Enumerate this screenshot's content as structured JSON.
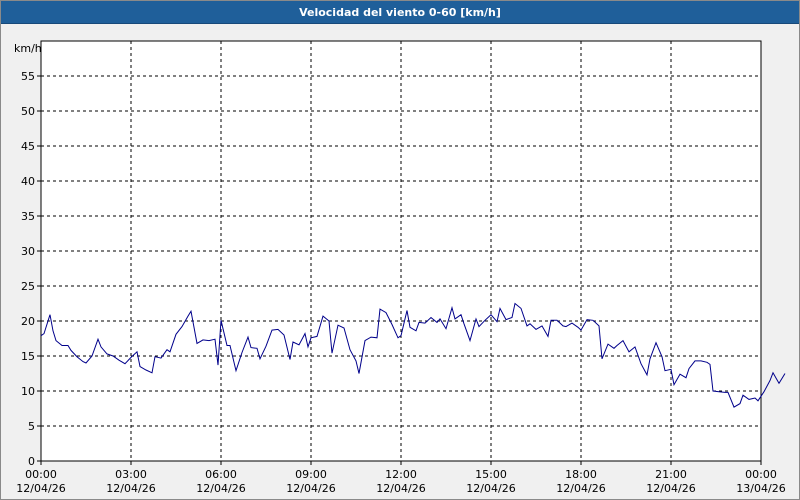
{
  "window": {
    "title": "Velocidad del viento 0-60 [km/h]"
  },
  "colors": {
    "series": "#00008b",
    "grid": "#000000",
    "plot_bg": "#ffffff",
    "title_bar": "#1f5f9a"
  },
  "chart_data": {
    "type": "line",
    "title": "Velocidad del viento 0-60 [km/h]",
    "ylabel": "km/h",
    "ylim": [
      0,
      60
    ],
    "yticks": [
      0,
      5,
      10,
      15,
      20,
      25,
      30,
      35,
      40,
      45,
      50,
      55
    ],
    "xlim_hours": [
      0,
      24
    ],
    "grid": true,
    "xticks": [
      {
        "hour": 0,
        "time": "00:00",
        "date": "12/04/26"
      },
      {
        "hour": 3,
        "time": "03:00",
        "date": "12/04/26"
      },
      {
        "hour": 6,
        "time": "06:00",
        "date": "12/04/26"
      },
      {
        "hour": 9,
        "time": "09:00",
        "date": "12/04/26"
      },
      {
        "hour": 12,
        "time": "12:00",
        "date": "12/04/26"
      },
      {
        "hour": 15,
        "time": "15:00",
        "date": "12/04/26"
      },
      {
        "hour": 18,
        "time": "18:00",
        "date": "12/04/26"
      },
      {
        "hour": 21,
        "time": "21:00",
        "date": "12/04/26"
      },
      {
        "hour": 24,
        "time": "00:00",
        "date": "13/04/26"
      }
    ],
    "series": [
      {
        "values": [
          [
            0.0,
            17.9
          ],
          [
            0.1,
            18.2
          ],
          [
            0.3,
            20.9
          ],
          [
            0.4,
            18.6
          ],
          [
            0.5,
            17.2
          ],
          [
            0.7,
            16.5
          ],
          [
            0.9,
            16.5
          ],
          [
            1.0,
            15.8
          ],
          [
            1.2,
            14.9
          ],
          [
            1.4,
            14.2
          ],
          [
            1.5,
            14.0
          ],
          [
            1.7,
            15.0
          ],
          [
            1.9,
            17.4
          ],
          [
            2.0,
            16.3
          ],
          [
            2.2,
            15.3
          ],
          [
            2.4,
            15.0
          ],
          [
            2.6,
            14.4
          ],
          [
            2.8,
            13.9
          ],
          [
            3.0,
            14.8
          ],
          [
            3.2,
            15.6
          ],
          [
            3.3,
            13.5
          ],
          [
            3.5,
            13.0
          ],
          [
            3.7,
            12.6
          ],
          [
            3.8,
            14.9
          ],
          [
            4.0,
            14.7
          ],
          [
            4.2,
            15.9
          ],
          [
            4.3,
            15.6
          ],
          [
            4.5,
            18.1
          ],
          [
            4.7,
            19.2
          ],
          [
            4.9,
            20.7
          ],
          [
            5.0,
            21.4
          ],
          [
            5.2,
            16.8
          ],
          [
            5.4,
            17.3
          ],
          [
            5.6,
            17.2
          ],
          [
            5.8,
            17.4
          ],
          [
            5.9,
            13.7
          ],
          [
            6.0,
            20.1
          ],
          [
            6.2,
            16.5
          ],
          [
            6.3,
            16.5
          ],
          [
            6.5,
            12.9
          ],
          [
            6.7,
            15.5
          ],
          [
            6.9,
            17.7
          ],
          [
            7.0,
            16.2
          ],
          [
            7.2,
            16.1
          ],
          [
            7.3,
            14.6
          ],
          [
            7.5,
            16.4
          ],
          [
            7.7,
            18.7
          ],
          [
            7.9,
            18.8
          ],
          [
            8.1,
            18.0
          ],
          [
            8.3,
            14.5
          ],
          [
            8.4,
            17.0
          ],
          [
            8.6,
            16.6
          ],
          [
            8.8,
            18.2
          ],
          [
            8.9,
            16.3
          ],
          [
            9.0,
            17.6
          ],
          [
            9.2,
            17.8
          ],
          [
            9.4,
            20.7
          ],
          [
            9.6,
            20.0
          ],
          [
            9.7,
            15.4
          ],
          [
            9.9,
            19.4
          ],
          [
            10.1,
            19.0
          ],
          [
            10.3,
            15.9
          ],
          [
            10.5,
            14.3
          ],
          [
            10.6,
            12.5
          ],
          [
            10.8,
            17.2
          ],
          [
            11.0,
            17.7
          ],
          [
            11.2,
            17.6
          ],
          [
            11.3,
            21.7
          ],
          [
            11.5,
            21.2
          ],
          [
            11.7,
            19.5
          ],
          [
            11.9,
            17.6
          ],
          [
            12.0,
            17.9
          ],
          [
            12.2,
            21.5
          ],
          [
            12.3,
            19.1
          ],
          [
            12.5,
            18.6
          ],
          [
            12.6,
            19.8
          ],
          [
            12.8,
            19.7
          ],
          [
            13.0,
            20.5
          ],
          [
            13.2,
            19.8
          ],
          [
            13.3,
            20.3
          ],
          [
            13.5,
            18.9
          ],
          [
            13.7,
            21.9
          ],
          [
            13.8,
            20.3
          ],
          [
            14.0,
            20.9
          ],
          [
            14.1,
            19.6
          ],
          [
            14.3,
            17.2
          ],
          [
            14.5,
            20.3
          ],
          [
            14.6,
            19.2
          ],
          [
            14.8,
            20.1
          ],
          [
            15.0,
            20.9
          ],
          [
            15.2,
            19.9
          ],
          [
            15.3,
            21.8
          ],
          [
            15.5,
            20.2
          ],
          [
            15.7,
            20.5
          ],
          [
            15.8,
            22.5
          ],
          [
            16.0,
            21.8
          ],
          [
            16.2,
            19.3
          ],
          [
            16.3,
            19.6
          ],
          [
            16.5,
            18.8
          ],
          [
            16.7,
            19.3
          ],
          [
            16.9,
            17.8
          ],
          [
            17.0,
            20.1
          ],
          [
            17.2,
            20.1
          ],
          [
            17.4,
            19.3
          ],
          [
            17.5,
            19.2
          ],
          [
            17.7,
            19.7
          ],
          [
            17.9,
            19.1
          ],
          [
            18.0,
            18.7
          ],
          [
            18.2,
            20.2
          ],
          [
            18.4,
            20.1
          ],
          [
            18.6,
            19.3
          ],
          [
            18.7,
            14.6
          ],
          [
            18.9,
            16.7
          ],
          [
            19.1,
            16.1
          ],
          [
            19.2,
            16.5
          ],
          [
            19.4,
            17.2
          ],
          [
            19.6,
            15.6
          ],
          [
            19.8,
            16.3
          ],
          [
            20.0,
            13.9
          ],
          [
            20.2,
            12.3
          ],
          [
            20.3,
            14.6
          ],
          [
            20.5,
            16.9
          ],
          [
            20.7,
            14.9
          ],
          [
            20.8,
            12.9
          ],
          [
            21.0,
            13.1
          ],
          [
            21.1,
            10.9
          ],
          [
            21.3,
            12.4
          ],
          [
            21.5,
            11.9
          ],
          [
            21.6,
            13.2
          ],
          [
            21.8,
            14.3
          ],
          [
            22.0,
            14.3
          ],
          [
            22.2,
            14.1
          ],
          [
            22.3,
            13.8
          ],
          [
            22.4,
            10.0
          ],
          [
            22.6,
            9.9
          ],
          [
            22.8,
            9.8
          ],
          [
            22.9,
            9.8
          ],
          [
            23.1,
            7.7
          ],
          [
            23.3,
            8.2
          ],
          [
            23.4,
            9.4
          ],
          [
            23.6,
            8.8
          ],
          [
            23.8,
            9.0
          ],
          [
            23.9,
            8.6
          ],
          [
            24.1,
            9.9
          ],
          [
            24.3,
            11.5
          ],
          [
            24.4,
            12.6
          ],
          [
            24.6,
            11.1
          ],
          [
            24.8,
            12.5
          ]
        ]
      }
    ]
  }
}
